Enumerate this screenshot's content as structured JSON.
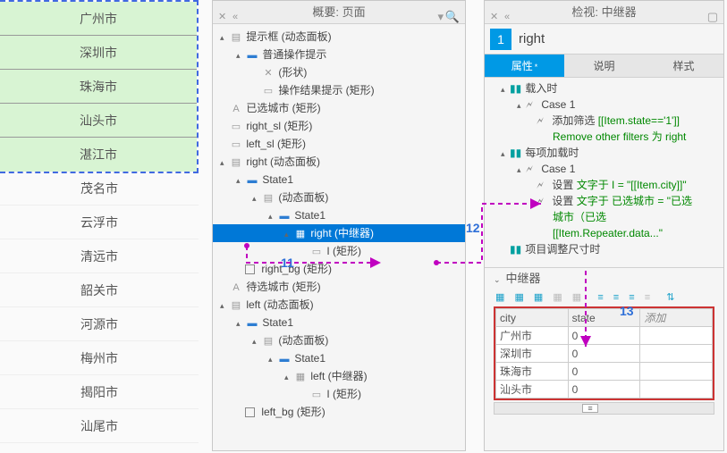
{
  "city_list": {
    "selected": [
      "广州市",
      "深圳市",
      "珠海市",
      "汕头市",
      "湛江市"
    ],
    "unselected": [
      "茂名市",
      "云浮市",
      "清远市",
      "韶关市",
      "河源市",
      "梅州市",
      "揭阳市",
      "汕尾市"
    ]
  },
  "outline": {
    "title": "概要: 页面",
    "nodes": [
      {
        "d": 0,
        "exp": true,
        "glyph": "panel",
        "label": "提示框 (动态面板)"
      },
      {
        "d": 1,
        "exp": true,
        "glyph": "state",
        "label": "普通操作提示"
      },
      {
        "d": 2,
        "exp": false,
        "glyph": "shape",
        "label": "(形状)"
      },
      {
        "d": 2,
        "exp": false,
        "glyph": "rect",
        "label": "操作结果提示 (矩形)"
      },
      {
        "d": 0,
        "exp": false,
        "glyph": "A",
        "label": "已选城市 (矩形)"
      },
      {
        "d": 0,
        "exp": false,
        "glyph": "rect",
        "label": "right_sl (矩形)"
      },
      {
        "d": 0,
        "exp": false,
        "glyph": "rect",
        "label": "left_sl (矩形)"
      },
      {
        "d": 0,
        "exp": true,
        "glyph": "panel",
        "label": "right (动态面板)"
      },
      {
        "d": 1,
        "exp": true,
        "glyph": "state",
        "label": "State1"
      },
      {
        "d": 2,
        "exp": true,
        "glyph": "panel",
        "label": "(动态面板)"
      },
      {
        "d": 3,
        "exp": true,
        "glyph": "state",
        "label": "State1"
      },
      {
        "d": 4,
        "exp": true,
        "glyph": "rep",
        "label": "right (中继器)",
        "selected": true
      },
      {
        "d": 5,
        "exp": false,
        "glyph": "rect",
        "label": "I (矩形)"
      },
      {
        "d": 1,
        "exp": false,
        "glyph": "cb",
        "label": "right_bg (矩形)"
      },
      {
        "d": 0,
        "exp": false,
        "glyph": "A",
        "label": "待选城市 (矩形)"
      },
      {
        "d": 0,
        "exp": true,
        "glyph": "panel",
        "label": "left (动态面板)"
      },
      {
        "d": 1,
        "exp": true,
        "glyph": "state",
        "label": "State1"
      },
      {
        "d": 2,
        "exp": true,
        "glyph": "panel",
        "label": "(动态面板)"
      },
      {
        "d": 3,
        "exp": true,
        "glyph": "state",
        "label": "State1"
      },
      {
        "d": 4,
        "exp": true,
        "glyph": "rep",
        "label": "left (中继器)"
      },
      {
        "d": 5,
        "exp": false,
        "glyph": "rect",
        "label": "I (矩形)"
      },
      {
        "d": 1,
        "exp": false,
        "glyph": "cb",
        "label": "left_bg (矩形)"
      }
    ]
  },
  "inspector": {
    "title": "检视: 中继器",
    "index": "1",
    "widget_name": "right",
    "tabs": {
      "props": "属性",
      "notes": "说明",
      "style": "样式"
    },
    "events": {
      "onload": "载入时",
      "case1": "Case 1",
      "addfilter": "添加筛选",
      "addfilter_expr": "[[Item.state=='1']]",
      "addfilter_desc": "Remove other filters 为 right",
      "itemload": "每项加载时",
      "case2": "Case 1",
      "set1": "设置",
      "set1_txt": "文字于 I = \"[[Item.city]]\"",
      "set2": "设置",
      "set2_txt": "文字于 已选城市 = \"已选",
      "set2_ln2": "城市（已选",
      "set2_expr": "[[Item.Repeater.data...\"",
      "itemresize": "项目调整尺寸时"
    },
    "repeater": {
      "title": "中继器",
      "cols": [
        "city",
        "state"
      ],
      "add_col": "添加",
      "rows": [
        [
          "广州市",
          "0"
        ],
        [
          "深圳市",
          "0"
        ],
        [
          "珠海市",
          "0"
        ],
        [
          "汕头市",
          "0"
        ]
      ]
    }
  },
  "annotations": {
    "a11": "11",
    "a12": "12",
    "a13": "13"
  },
  "colors": {
    "sel_border": "#4169E1",
    "sel_bg": "#d8f4d3",
    "tab_active": "#0099e5",
    "green_code": "#008800",
    "link": "#0066cc",
    "red_box": "#cc3333",
    "magenta": "#c000c0"
  }
}
